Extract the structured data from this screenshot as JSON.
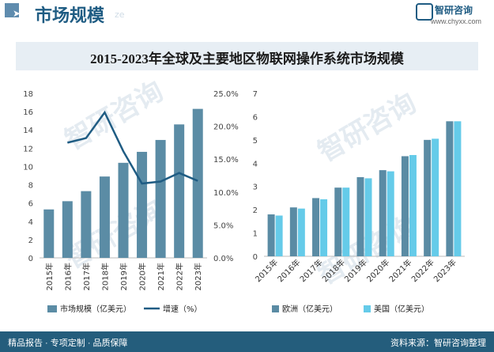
{
  "header": {
    "title": "市场规模",
    "watermark": "ze",
    "brand": "智研咨询",
    "url": "www.chyxx.com"
  },
  "colors": {
    "bar": "#5b8ca5",
    "line": "#1f5c83",
    "eu": "#5a8ba4",
    "us": "#65cbe9",
    "footer": "#245d7c"
  },
  "chart_data": [
    {
      "type": "bar+line",
      "title": "2015-2023年全球及主要地区物联网操作系统市场规模",
      "categories": [
        "2015年",
        "2016年",
        "2017年",
        "2018年",
        "2019年",
        "2020年",
        "2021年",
        "2022年",
        "2023年"
      ],
      "series": [
        {
          "name": "市场规模（亿美元）",
          "axis": "left",
          "values": [
            5.3,
            6.2,
            7.3,
            8.9,
            10.4,
            11.6,
            12.9,
            14.6,
            16.3
          ]
        },
        {
          "name": "增速（%）",
          "axis": "right",
          "values": [
            null,
            17.5,
            18.2,
            22.1,
            16.2,
            11.3,
            11.6,
            12.9,
            11.7
          ]
        }
      ],
      "yticks_left": [
        "0",
        "2",
        "4",
        "6",
        "8",
        "10",
        "12",
        "14",
        "16",
        "18"
      ],
      "yticks_right": [
        "0.0%",
        "5.0%",
        "10.0%",
        "15.0%",
        "20.0%",
        "25.0%"
      ],
      "ylim_left": [
        0,
        18
      ],
      "ylim_right": [
        0,
        25
      ]
    },
    {
      "type": "bar",
      "categories": [
        "2015年",
        "2016年",
        "2017年",
        "2018年",
        "2019年",
        "2020年",
        "2021年",
        "2022年",
        "2023年"
      ],
      "series": [
        {
          "name": "欧洲（亿美元）",
          "values": [
            1.8,
            2.1,
            2.5,
            2.95,
            3.4,
            3.7,
            4.3,
            5.0,
            5.8
          ]
        },
        {
          "name": "美国（亿美元）",
          "values": [
            1.75,
            2.05,
            2.45,
            2.95,
            3.35,
            3.65,
            4.35,
            5.05,
            5.8
          ]
        }
      ],
      "yticks": [
        "0",
        "1",
        "2",
        "3",
        "4",
        "5",
        "6",
        "7"
      ],
      "ylim": [
        0,
        7
      ]
    }
  ],
  "footer": {
    "left": "精品报告 · 专项定制 · 品质保障",
    "right": "资料来源：智研咨询整理"
  },
  "watermarks": [
    "智研咨询",
    "智研咨询",
    "智研咨询",
    "智研咨询"
  ]
}
